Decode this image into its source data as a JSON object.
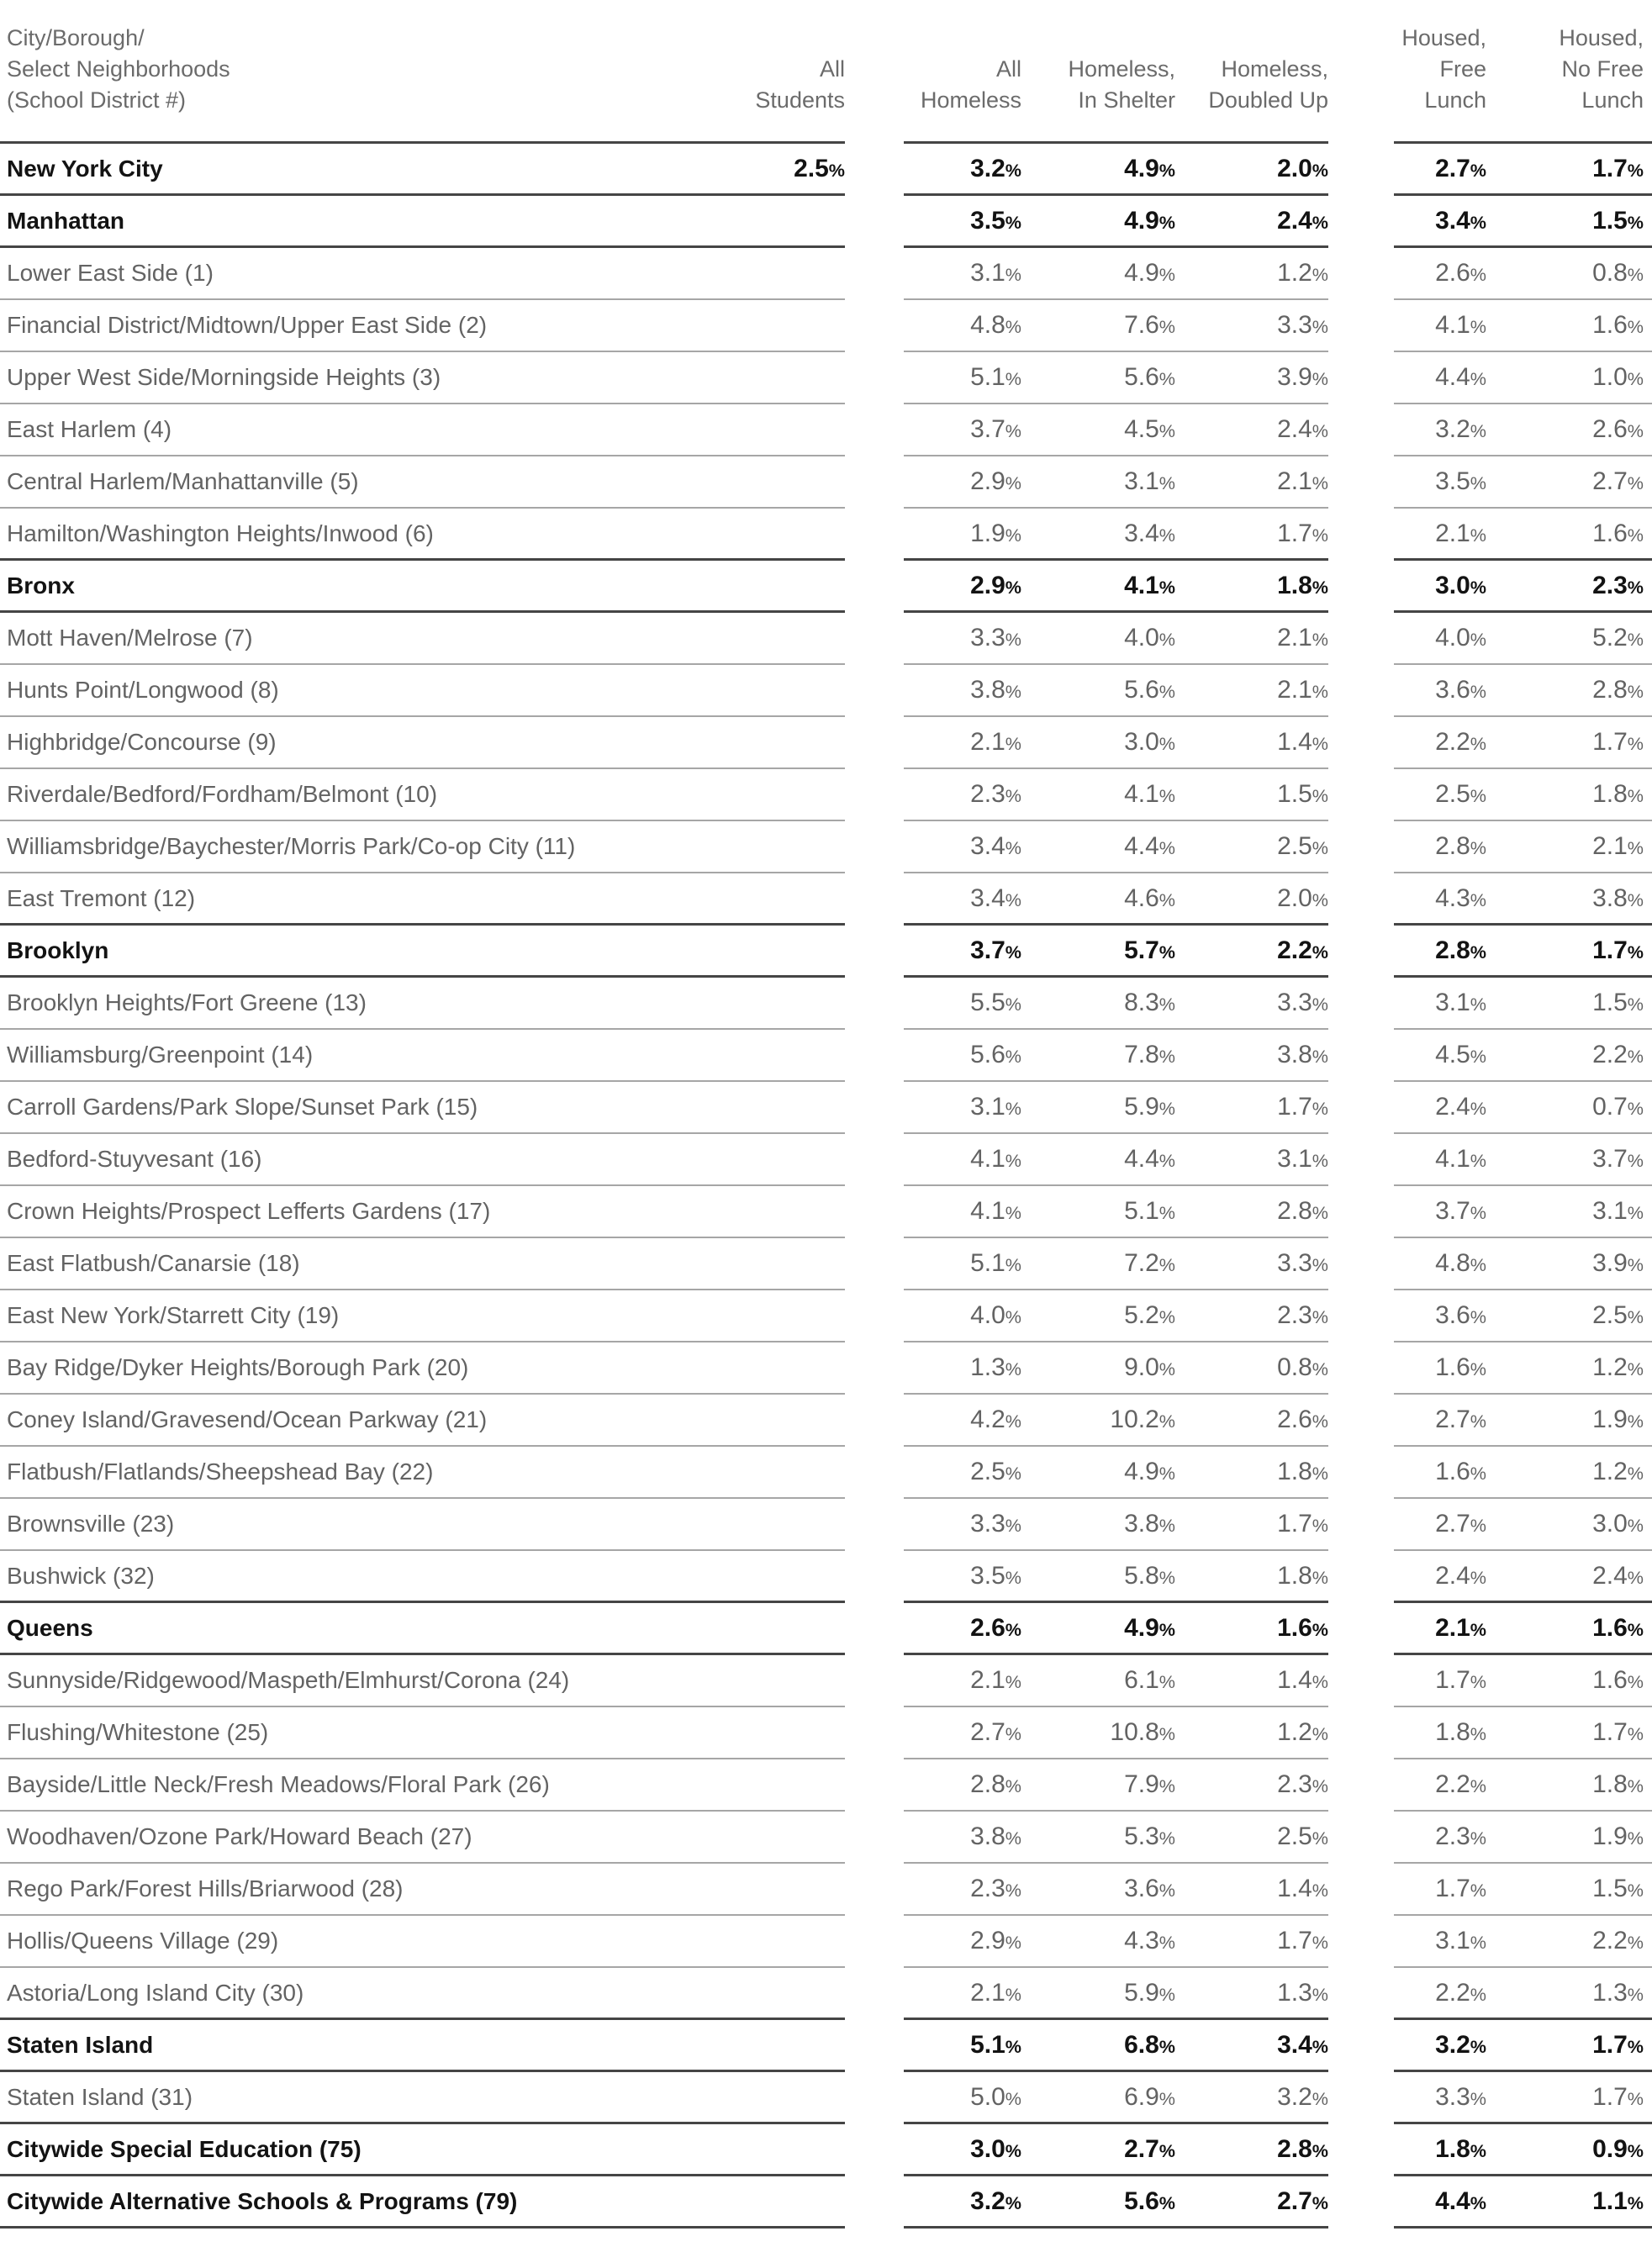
{
  "chart_data": {
    "type": "table",
    "title": "",
    "columns": [
      "City/Borough/\nSelect Neighborhoods\n(School District #)",
      "All\nStudents",
      "All\nHomeless",
      "Homeless,\nIn Shelter",
      "Homeless,\nDoubled Up",
      "Housed,\nFree\nLunch",
      "Housed,\nNo Free\nLunch"
    ],
    "rows": [
      {
        "label": "New York City",
        "bold": true,
        "values": [
          "2.5%",
          "3.2%",
          "4.9%",
          "2.0%",
          "2.7%",
          "1.7%"
        ]
      },
      {
        "label": "Manhattan",
        "bold": true,
        "values": [
          "",
          "3.5%",
          "4.9%",
          "2.4%",
          "3.4%",
          "1.5%"
        ]
      },
      {
        "label": "Lower East Side (1)",
        "bold": false,
        "values": [
          "",
          "3.1%",
          "4.9%",
          "1.2%",
          "2.6%",
          "0.8%"
        ]
      },
      {
        "label": "Financial District/Midtown/Upper East Side (2)",
        "bold": false,
        "values": [
          "",
          "4.8%",
          "7.6%",
          "3.3%",
          "4.1%",
          "1.6%"
        ]
      },
      {
        "label": "Upper West Side/Morningside Heights (3)",
        "bold": false,
        "values": [
          "",
          "5.1%",
          "5.6%",
          "3.9%",
          "4.4%",
          "1.0%"
        ]
      },
      {
        "label": "East Harlem (4)",
        "bold": false,
        "values": [
          "",
          "3.7%",
          "4.5%",
          "2.4%",
          "3.2%",
          "2.6%"
        ]
      },
      {
        "label": "Central Harlem/Manhattanville (5)",
        "bold": false,
        "values": [
          "",
          "2.9%",
          "3.1%",
          "2.1%",
          "3.5%",
          "2.7%"
        ]
      },
      {
        "label": "Hamilton/Washington Heights/Inwood (6)",
        "bold": false,
        "values": [
          "",
          "1.9%",
          "3.4%",
          "1.7%",
          "2.1%",
          "1.6%"
        ]
      },
      {
        "label": "Bronx",
        "bold": true,
        "values": [
          "",
          "2.9%",
          "4.1%",
          "1.8%",
          "3.0%",
          "2.3%"
        ]
      },
      {
        "label": "Mott Haven/Melrose (7)",
        "bold": false,
        "values": [
          "",
          "3.3%",
          "4.0%",
          "2.1%",
          "4.0%",
          "5.2%"
        ]
      },
      {
        "label": "Hunts Point/Longwood (8)",
        "bold": false,
        "values": [
          "",
          "3.8%",
          "5.6%",
          "2.1%",
          "3.6%",
          "2.8%"
        ]
      },
      {
        "label": "Highbridge/Concourse (9)",
        "bold": false,
        "values": [
          "",
          "2.1%",
          "3.0%",
          "1.4%",
          "2.2%",
          "1.7%"
        ]
      },
      {
        "label": "Riverdale/Bedford/Fordham/Belmont (10)",
        "bold": false,
        "values": [
          "",
          "2.3%",
          "4.1%",
          "1.5%",
          "2.5%",
          "1.8%"
        ]
      },
      {
        "label": "Williamsbridge/Baychester/Morris Park/Co-op City (11)",
        "bold": false,
        "values": [
          "",
          "3.4%",
          "4.4%",
          "2.5%",
          "2.8%",
          "2.1%"
        ]
      },
      {
        "label": "East Tremont (12)",
        "bold": false,
        "values": [
          "",
          "3.4%",
          "4.6%",
          "2.0%",
          "4.3%",
          "3.8%"
        ]
      },
      {
        "label": "Brooklyn",
        "bold": true,
        "values": [
          "",
          "3.7%",
          "5.7%",
          "2.2%",
          "2.8%",
          "1.7%"
        ]
      },
      {
        "label": "Brooklyn Heights/Fort Greene (13)",
        "bold": false,
        "values": [
          "",
          "5.5%",
          "8.3%",
          "3.3%",
          "3.1%",
          "1.5%"
        ]
      },
      {
        "label": "Williamsburg/Greenpoint (14)",
        "bold": false,
        "values": [
          "",
          "5.6%",
          "7.8%",
          "3.8%",
          "4.5%",
          "2.2%"
        ]
      },
      {
        "label": "Carroll Gardens/Park Slope/Sunset Park (15)",
        "bold": false,
        "values": [
          "",
          "3.1%",
          "5.9%",
          "1.7%",
          "2.4%",
          "0.7%"
        ]
      },
      {
        "label": "Bedford-Stuyvesant (16)",
        "bold": false,
        "values": [
          "",
          "4.1%",
          "4.4%",
          "3.1%",
          "4.1%",
          "3.7%"
        ]
      },
      {
        "label": "Crown Heights/Prospect Lefferts Gardens (17)",
        "bold": false,
        "values": [
          "",
          "4.1%",
          "5.1%",
          "2.8%",
          "3.7%",
          "3.1%"
        ]
      },
      {
        "label": "East Flatbush/Canarsie (18)",
        "bold": false,
        "values": [
          "",
          "5.1%",
          "7.2%",
          "3.3%",
          "4.8%",
          "3.9%"
        ]
      },
      {
        "label": "East New York/Starrett City (19)",
        "bold": false,
        "values": [
          "",
          "4.0%",
          "5.2%",
          "2.3%",
          "3.6%",
          "2.5%"
        ]
      },
      {
        "label": "Bay Ridge/Dyker Heights/Borough Park (20)",
        "bold": false,
        "values": [
          "",
          "1.3%",
          "9.0%",
          "0.8%",
          "1.6%",
          "1.2%"
        ]
      },
      {
        "label": "Coney Island/Gravesend/Ocean Parkway (21)",
        "bold": false,
        "values": [
          "",
          "4.2%",
          "10.2%",
          "2.6%",
          "2.7%",
          "1.9%"
        ]
      },
      {
        "label": "Flatbush/Flatlands/Sheepshead Bay (22)",
        "bold": false,
        "values": [
          "",
          "2.5%",
          "4.9%",
          "1.8%",
          "1.6%",
          "1.2%"
        ]
      },
      {
        "label": "Brownsville (23)",
        "bold": false,
        "values": [
          "",
          "3.3%",
          "3.8%",
          "1.7%",
          "2.7%",
          "3.0%"
        ]
      },
      {
        "label": "Bushwick (32)",
        "bold": false,
        "values": [
          "",
          "3.5%",
          "5.8%",
          "1.8%",
          "2.4%",
          "2.4%"
        ]
      },
      {
        "label": "Queens",
        "bold": true,
        "values": [
          "",
          "2.6%",
          "4.9%",
          "1.6%",
          "2.1%",
          "1.6%"
        ]
      },
      {
        "label": "Sunnyside/Ridgewood/Maspeth/Elmhurst/Corona (24)",
        "bold": false,
        "values": [
          "",
          "2.1%",
          "6.1%",
          "1.4%",
          "1.7%",
          "1.6%"
        ]
      },
      {
        "label": "Flushing/Whitestone (25)",
        "bold": false,
        "values": [
          "",
          "2.7%",
          "10.8%",
          "1.2%",
          "1.8%",
          "1.7%"
        ]
      },
      {
        "label": "Bayside/Little Neck/Fresh Meadows/Floral Park (26)",
        "bold": false,
        "values": [
          "",
          "2.8%",
          "7.9%",
          "2.3%",
          "2.2%",
          "1.8%"
        ]
      },
      {
        "label": "Woodhaven/Ozone Park/Howard Beach (27)",
        "bold": false,
        "values": [
          "",
          "3.8%",
          "5.3%",
          "2.5%",
          "2.3%",
          "1.9%"
        ]
      },
      {
        "label": "Rego Park/Forest Hills/Briarwood (28)",
        "bold": false,
        "values": [
          "",
          "2.3%",
          "3.6%",
          "1.4%",
          "1.7%",
          "1.5%"
        ]
      },
      {
        "label": "Hollis/Queens Village (29)",
        "bold": false,
        "values": [
          "",
          "2.9%",
          "4.3%",
          "1.7%",
          "3.1%",
          "2.2%"
        ]
      },
      {
        "label": "Astoria/Long Island City (30)",
        "bold": false,
        "values": [
          "",
          "2.1%",
          "5.9%",
          "1.3%",
          "2.2%",
          "1.3%"
        ]
      },
      {
        "label": "Staten Island",
        "bold": true,
        "values": [
          "",
          "5.1%",
          "6.8%",
          "3.4%",
          "3.2%",
          "1.7%"
        ]
      },
      {
        "label": "Staten Island (31)",
        "bold": false,
        "values": [
          "",
          "5.0%",
          "6.9%",
          "3.2%",
          "3.3%",
          "1.7%"
        ]
      },
      {
        "label": "Citywide Special Education (75)",
        "bold": true,
        "values": [
          "",
          "3.0%",
          "2.7%",
          "2.8%",
          "1.8%",
          "0.9%"
        ]
      },
      {
        "label": "Citywide Alternative Schools & Programs (79)",
        "bold": true,
        "values": [
          "",
          "3.2%",
          "5.6%",
          "2.7%",
          "4.4%",
          "1.1%"
        ]
      }
    ],
    "layout_hints": {
      "column_groups": [
        "name_and_all_students",
        "homeless_columns",
        "housed_columns"
      ],
      "grid": "horizontal rules only; dark rules around bold borough summary rows, light rules between district rows"
    },
    "colors": {
      "text_regular": "#636363",
      "text_bold": "#131313",
      "header_text": "#6b6b6b",
      "rule_light": "#a6a6a6",
      "rule_dark": "#454545",
      "background": "#ffffff"
    }
  }
}
